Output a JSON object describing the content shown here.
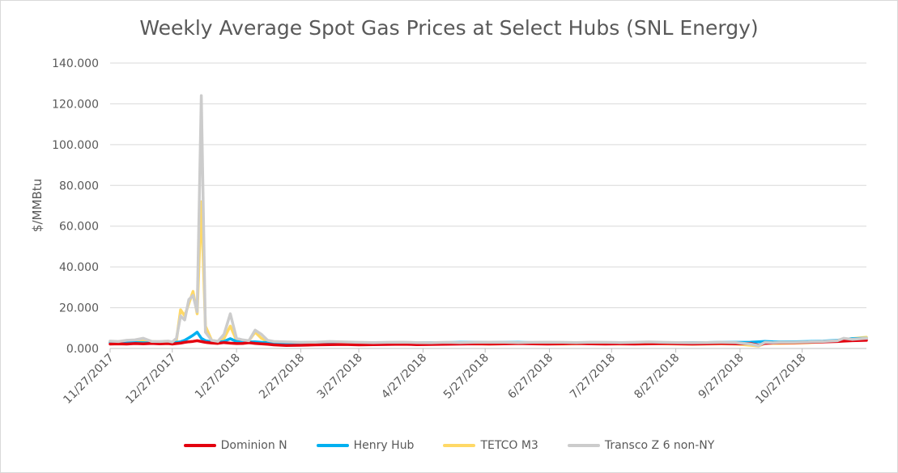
{
  "chart_data": {
    "type": "line",
    "title": "Weekly Average Spot Gas Prices at Select Hubs (SNL Energy)",
    "xlabel": "",
    "ylabel": "$/MMBtu",
    "ylim": [
      0,
      140
    ],
    "yticks": [
      "0.000",
      "20.000",
      "40.000",
      "60.000",
      "80.000",
      "100.000",
      "120.000",
      "140.000"
    ],
    "xticks": [
      "11/27/2017",
      "12/27/2017",
      "1/27/2018",
      "2/27/2018",
      "3/27/2018",
      "4/27/2018",
      "5/27/2018",
      "6/27/2018",
      "7/27/2018",
      "8/27/2018",
      "9/27/2018",
      "10/27/2018"
    ],
    "x": [
      "2017-11-27",
      "2017-12-01",
      "2017-12-05",
      "2017-12-09",
      "2017-12-13",
      "2017-12-17",
      "2017-12-21",
      "2017-12-25",
      "2017-12-27",
      "2017-12-29",
      "2017-12-31",
      "2018-01-02",
      "2018-01-04",
      "2018-01-06",
      "2018-01-08",
      "2018-01-10",
      "2018-01-12",
      "2018-01-15",
      "2018-01-18",
      "2018-01-21",
      "2018-01-24",
      "2018-01-27",
      "2018-01-30",
      "2018-02-02",
      "2018-02-05",
      "2018-02-08",
      "2018-02-11",
      "2018-02-14",
      "2018-02-20",
      "2018-02-27",
      "2018-03-06",
      "2018-03-13",
      "2018-03-20",
      "2018-03-27",
      "2018-04-03",
      "2018-04-10",
      "2018-04-17",
      "2018-04-24",
      "2018-05-01",
      "2018-05-08",
      "2018-05-15",
      "2018-05-22",
      "2018-05-29",
      "2018-06-05",
      "2018-06-12",
      "2018-06-19",
      "2018-06-26",
      "2018-07-03",
      "2018-07-10",
      "2018-07-17",
      "2018-07-24",
      "2018-07-31",
      "2018-08-07",
      "2018-08-14",
      "2018-08-21",
      "2018-08-28",
      "2018-09-04",
      "2018-09-11",
      "2018-09-18",
      "2018-09-25",
      "2018-10-02",
      "2018-10-06",
      "2018-10-09",
      "2018-10-13",
      "2018-10-16",
      "2018-10-23",
      "2018-10-30",
      "2018-11-06",
      "2018-11-13",
      "2018-11-16",
      "2018-11-20",
      "2018-11-27"
    ],
    "series": [
      {
        "name": "Dominion N",
        "color": "#e3000f",
        "values": [
          2.2,
          2.3,
          2.2,
          2.4,
          2.3,
          2.5,
          2.3,
          2.4,
          2.2,
          2.4,
          2.6,
          3.0,
          3.3,
          3.5,
          3.8,
          3.4,
          3.0,
          2.7,
          2.5,
          2.9,
          2.6,
          2.4,
          2.5,
          2.8,
          2.5,
          2.3,
          2.1,
          1.8,
          1.5,
          1.6,
          1.8,
          1.9,
          2.0,
          1.8,
          1.9,
          2.0,
          2.1,
          1.9,
          2.0,
          2.1,
          2.2,
          2.3,
          2.2,
          2.3,
          2.4,
          2.3,
          2.2,
          2.3,
          2.4,
          2.3,
          2.2,
          2.3,
          2.2,
          2.3,
          2.4,
          2.3,
          2.2,
          2.3,
          2.4,
          2.3,
          2.4,
          1.6,
          2.5,
          2.7,
          2.8,
          2.9,
          3.0,
          3.2,
          3.4,
          3.6,
          3.8,
          4.0
        ]
      },
      {
        "name": "Henry Hub",
        "color": "#00b0f0",
        "values": [
          3.0,
          3.1,
          3.0,
          2.9,
          2.8,
          2.7,
          2.8,
          2.9,
          2.7,
          3.0,
          3.3,
          4.0,
          5.2,
          6.5,
          8.0,
          5.0,
          3.8,
          3.2,
          3.0,
          3.5,
          4.8,
          3.4,
          3.3,
          3.2,
          3.3,
          3.0,
          2.9,
          2.7,
          2.6,
          2.7,
          2.8,
          2.7,
          2.8,
          2.8,
          2.7,
          2.8,
          2.9,
          2.8,
          2.8,
          2.9,
          3.0,
          3.0,
          3.0,
          3.0,
          3.0,
          2.9,
          2.9,
          2.9,
          2.9,
          2.8,
          2.9,
          2.9,
          2.9,
          2.9,
          2.9,
          2.9,
          2.9,
          2.9,
          3.0,
          3.0,
          3.1,
          3.3,
          3.5,
          3.3,
          3.2,
          3.3,
          3.4,
          3.6,
          4.0,
          4.5,
          4.8,
          5.0
        ]
      },
      {
        "name": "TETCO M3",
        "color": "#ffd966",
        "values": [
          3.4,
          3.2,
          3.5,
          3.3,
          3.6,
          3.4,
          3.2,
          3.3,
          3.1,
          4.0,
          19.0,
          16.0,
          22.0,
          28.0,
          17.0,
          72.0,
          11.0,
          4.0,
          3.5,
          5.0,
          11.0,
          4.0,
          3.6,
          3.8,
          8.0,
          5.0,
          3.6,
          3.2,
          2.9,
          2.6,
          2.7,
          2.9,
          2.8,
          2.6,
          2.5,
          2.6,
          2.5,
          2.4,
          2.3,
          2.2,
          2.4,
          2.3,
          2.2,
          2.3,
          2.4,
          2.5,
          2.3,
          2.2,
          2.3,
          2.4,
          2.3,
          2.2,
          2.3,
          2.4,
          2.3,
          2.2,
          2.1,
          2.2,
          2.3,
          2.2,
          1.6,
          1.2,
          2.6,
          2.4,
          2.5,
          2.6,
          2.8,
          3.2,
          3.6,
          4.4,
          4.8,
          5.5
        ]
      },
      {
        "name": "Transco Z 6 non-NY",
        "color": "#cccccc",
        "values": [
          3.6,
          3.4,
          4.0,
          4.2,
          5.0,
          3.5,
          3.4,
          3.6,
          3.2,
          5.0,
          16.0,
          14.0,
          24.0,
          26.0,
          18.0,
          124.0,
          8.0,
          4.0,
          3.5,
          7.0,
          17.0,
          5.0,
          4.2,
          3.8,
          9.0,
          7.0,
          4.0,
          3.4,
          3.2,
          3.0,
          3.1,
          3.4,
          3.2,
          3.0,
          2.9,
          3.0,
          3.1,
          2.9,
          2.8,
          3.0,
          2.9,
          3.0,
          3.1,
          3.0,
          2.9,
          3.0,
          3.1,
          3.0,
          2.9,
          3.1,
          3.0,
          2.9,
          3.0,
          3.2,
          3.0,
          2.9,
          2.8,
          2.9,
          3.0,
          2.9,
          2.2,
          1.4,
          3.0,
          2.8,
          3.0,
          3.1,
          3.2,
          3.5,
          3.8,
          5.0,
          4.5,
          5.0
        ]
      }
    ],
    "grid": true,
    "legend_position": "bottom"
  }
}
